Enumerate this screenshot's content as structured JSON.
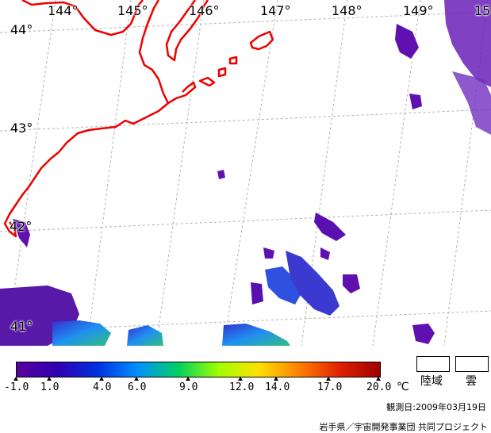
{
  "lon_labels": [
    "144°",
    "145°",
    "146°",
    "147°",
    "148°",
    "149°",
    "15"
  ],
  "lat_labels": [
    "44°",
    "43°",
    "42°",
    "41°"
  ],
  "colorbar": {
    "ticks": [
      "-1.0",
      "1.0",
      "4.0",
      "6.0",
      "9.0",
      "12.0",
      "14.0",
      "17.0",
      "20.0"
    ],
    "unit": "℃",
    "colors": [
      "#5a00a0",
      "#3000b0",
      "#0030e0",
      "#0090ff",
      "#00d060",
      "#a0ff00",
      "#ffe000",
      "#ff8000",
      "#e02000",
      "#a00000"
    ]
  },
  "legend": {
    "land_label": "陸域",
    "cloud_label": "雲"
  },
  "observation_date": "観測日:2009年03月19日",
  "credit": "岩手県／宇宙開発事業団 共同プロジェクト",
  "colors": {
    "coastline": "#ee0000",
    "grid": "#b0b0b0",
    "sst_low": "#6010b0"
  }
}
